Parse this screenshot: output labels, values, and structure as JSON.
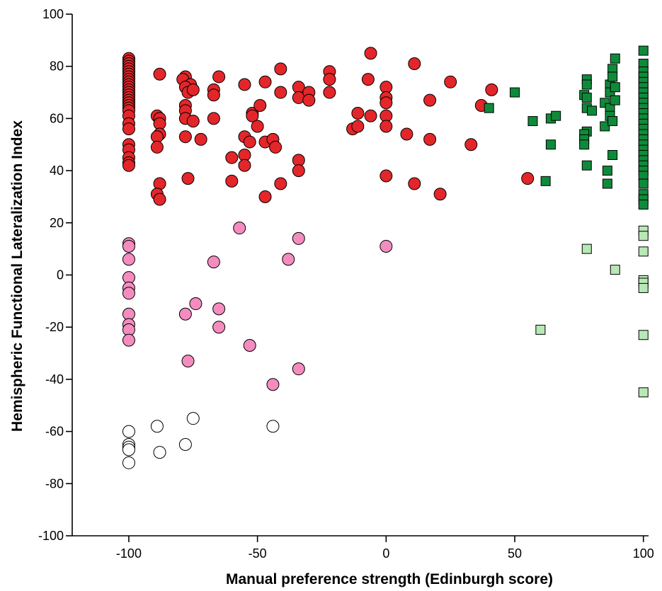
{
  "chart_data": {
    "type": "scatter",
    "title": "",
    "xlabel": "Manual preference strength (Edinburgh score)",
    "ylabel": "Hemispheric Functional Lateralization Index",
    "xlim": [
      -122,
      102
    ],
    "ylim": [
      -100,
      100
    ],
    "x_ticks": [
      -100,
      -50,
      0,
      50,
      100
    ],
    "y_ticks": [
      -100,
      -80,
      -60,
      -40,
      -20,
      0,
      20,
      40,
      60,
      80,
      100
    ],
    "grid": false,
    "legend": "none",
    "series": [
      {
        "marker": "circle",
        "color": "#e3262a",
        "points": [
          [
            -100,
            83
          ],
          [
            -100,
            82
          ],
          [
            -100,
            81
          ],
          [
            -100,
            80
          ],
          [
            -100,
            79
          ],
          [
            -100,
            78
          ],
          [
            -100,
            77
          ],
          [
            -100,
            76
          ],
          [
            -100,
            75
          ],
          [
            -100,
            74
          ],
          [
            -100,
            73
          ],
          [
            -100,
            72
          ],
          [
            -100,
            71
          ],
          [
            -100,
            70
          ],
          [
            -100,
            69
          ],
          [
            -100,
            68
          ],
          [
            -100,
            67
          ],
          [
            -100,
            66
          ],
          [
            -100,
            65
          ],
          [
            -100,
            64
          ],
          [
            -100,
            63
          ],
          [
            -100,
            61
          ],
          [
            -100,
            58
          ],
          [
            -100,
            56
          ],
          [
            -100,
            50
          ],
          [
            -100,
            48
          ],
          [
            -100,
            45
          ],
          [
            -100,
            43
          ],
          [
            -100,
            42
          ],
          [
            -88,
            77
          ],
          [
            -89,
            61
          ],
          [
            -88,
            60
          ],
          [
            -88,
            58
          ],
          [
            -88,
            54
          ],
          [
            -89,
            53
          ],
          [
            -89,
            49
          ],
          [
            -88,
            35
          ],
          [
            -89,
            31
          ],
          [
            -88,
            29
          ],
          [
            -78,
            76
          ],
          [
            -79,
            75
          ],
          [
            -76,
            73
          ],
          [
            -78,
            72
          ],
          [
            -77,
            70
          ],
          [
            -75,
            71
          ],
          [
            -78,
            65
          ],
          [
            -78,
            63
          ],
          [
            -78,
            60
          ],
          [
            -75,
            59
          ],
          [
            -78,
            53
          ],
          [
            -77,
            37
          ],
          [
            -72,
            52
          ],
          [
            -65,
            76
          ],
          [
            -67,
            71
          ],
          [
            -67,
            69
          ],
          [
            -67,
            60
          ],
          [
            -60,
            45
          ],
          [
            -60,
            36
          ],
          [
            -55,
            73
          ],
          [
            -55,
            53
          ],
          [
            -55,
            46
          ],
          [
            -55,
            42
          ],
          [
            -52,
            62
          ],
          [
            -52,
            61
          ],
          [
            -50,
            57
          ],
          [
            -49,
            65
          ],
          [
            -47,
            74
          ],
          [
            -53,
            51
          ],
          [
            -47,
            51
          ],
          [
            -47,
            30
          ],
          [
            -44,
            52
          ],
          [
            -43,
            49
          ],
          [
            -41,
            79
          ],
          [
            -41,
            70
          ],
          [
            -41,
            35
          ],
          [
            -34,
            72
          ],
          [
            -34,
            68
          ],
          [
            -34,
            44
          ],
          [
            -34,
            40
          ],
          [
            -30,
            70
          ],
          [
            -30,
            67
          ],
          [
            -22,
            78
          ],
          [
            -22,
            75
          ],
          [
            -22,
            70
          ],
          [
            -13,
            56
          ],
          [
            -11,
            62
          ],
          [
            -11,
            57
          ],
          [
            -6,
            85
          ],
          [
            -7,
            75
          ],
          [
            -6,
            61
          ],
          [
            0,
            72
          ],
          [
            0,
            68
          ],
          [
            0,
            66
          ],
          [
            0,
            61
          ],
          [
            0,
            57
          ],
          [
            0,
            38
          ],
          [
            8,
            54
          ],
          [
            11,
            81
          ],
          [
            11,
            35
          ],
          [
            17,
            67
          ],
          [
            17,
            52
          ],
          [
            21,
            31
          ],
          [
            25,
            74
          ],
          [
            33,
            50
          ],
          [
            37,
            65
          ],
          [
            41,
            71
          ],
          [
            55,
            37
          ]
        ]
      },
      {
        "marker": "circle",
        "color": "#f48cbf",
        "points": [
          [
            -100,
            12
          ],
          [
            -100,
            11
          ],
          [
            -100,
            6
          ],
          [
            -100,
            -1
          ],
          [
            -100,
            -5
          ],
          [
            -100,
            -7
          ],
          [
            -100,
            -15
          ],
          [
            -100,
            -19
          ],
          [
            -100,
            -21
          ],
          [
            -100,
            -25
          ],
          [
            -78,
            -15
          ],
          [
            -77,
            -33
          ],
          [
            -74,
            -11
          ],
          [
            -67,
            5
          ],
          [
            -65,
            -13
          ],
          [
            -65,
            -20
          ],
          [
            -57,
            18
          ],
          [
            -53,
            -27
          ],
          [
            -38,
            6
          ],
          [
            -44,
            -42
          ],
          [
            -34,
            14
          ],
          [
            -34,
            -36
          ],
          [
            0,
            11
          ]
        ]
      },
      {
        "marker": "circle",
        "color": "#ffffff",
        "points": [
          [
            -100,
            -60
          ],
          [
            -100,
            -65
          ],
          [
            -100,
            -66
          ],
          [
            -100,
            -67
          ],
          [
            -100,
            -72
          ],
          [
            -89,
            -58
          ],
          [
            -88,
            -68
          ],
          [
            -78,
            -65
          ],
          [
            -75,
            -55
          ],
          [
            -44,
            -58
          ]
        ]
      },
      {
        "marker": "square",
        "color": "#0f8a3a",
        "points": [
          [
            40,
            64
          ],
          [
            50,
            70
          ],
          [
            57,
            59
          ],
          [
            62,
            36
          ],
          [
            64,
            60
          ],
          [
            64,
            50
          ],
          [
            66,
            61
          ],
          [
            77,
            69
          ],
          [
            78,
            75
          ],
          [
            78,
            73
          ],
          [
            78,
            68
          ],
          [
            78,
            64
          ],
          [
            78,
            55
          ],
          [
            77,
            54
          ],
          [
            77,
            52
          ],
          [
            77,
            50
          ],
          [
            78,
            42
          ],
          [
            80,
            63
          ],
          [
            85,
            66
          ],
          [
            85,
            57
          ],
          [
            86,
            40
          ],
          [
            86,
            35
          ],
          [
            87,
            73
          ],
          [
            87,
            70
          ],
          [
            87,
            64
          ],
          [
            87,
            61
          ],
          [
            88,
            79
          ],
          [
            88,
            76
          ],
          [
            88,
            59
          ],
          [
            88,
            46
          ],
          [
            89,
            83
          ],
          [
            89,
            72
          ],
          [
            89,
            67
          ],
          [
            100,
            86
          ],
          [
            100,
            81
          ],
          [
            100,
            78
          ],
          [
            100,
            76
          ],
          [
            100,
            74
          ],
          [
            100,
            72
          ],
          [
            100,
            70
          ],
          [
            100,
            68
          ],
          [
            100,
            66
          ],
          [
            100,
            64
          ],
          [
            100,
            62
          ],
          [
            100,
            60
          ],
          [
            100,
            58
          ],
          [
            100,
            56
          ],
          [
            100,
            54
          ],
          [
            100,
            52
          ],
          [
            100,
            50
          ],
          [
            100,
            48
          ],
          [
            100,
            46
          ],
          [
            100,
            44
          ],
          [
            100,
            42
          ],
          [
            100,
            40
          ],
          [
            100,
            38
          ],
          [
            100,
            35
          ],
          [
            100,
            31
          ],
          [
            100,
            29
          ],
          [
            100,
            27
          ]
        ]
      },
      {
        "marker": "square",
        "color": "#b7e8b5",
        "points": [
          [
            60,
            -21
          ],
          [
            78,
            10
          ],
          [
            89,
            2
          ],
          [
            100,
            17
          ],
          [
            100,
            15
          ],
          [
            100,
            9
          ],
          [
            100,
            -2
          ],
          [
            100,
            -3
          ],
          [
            100,
            -5
          ],
          [
            100,
            -23
          ],
          [
            100,
            -45
          ]
        ]
      }
    ]
  }
}
